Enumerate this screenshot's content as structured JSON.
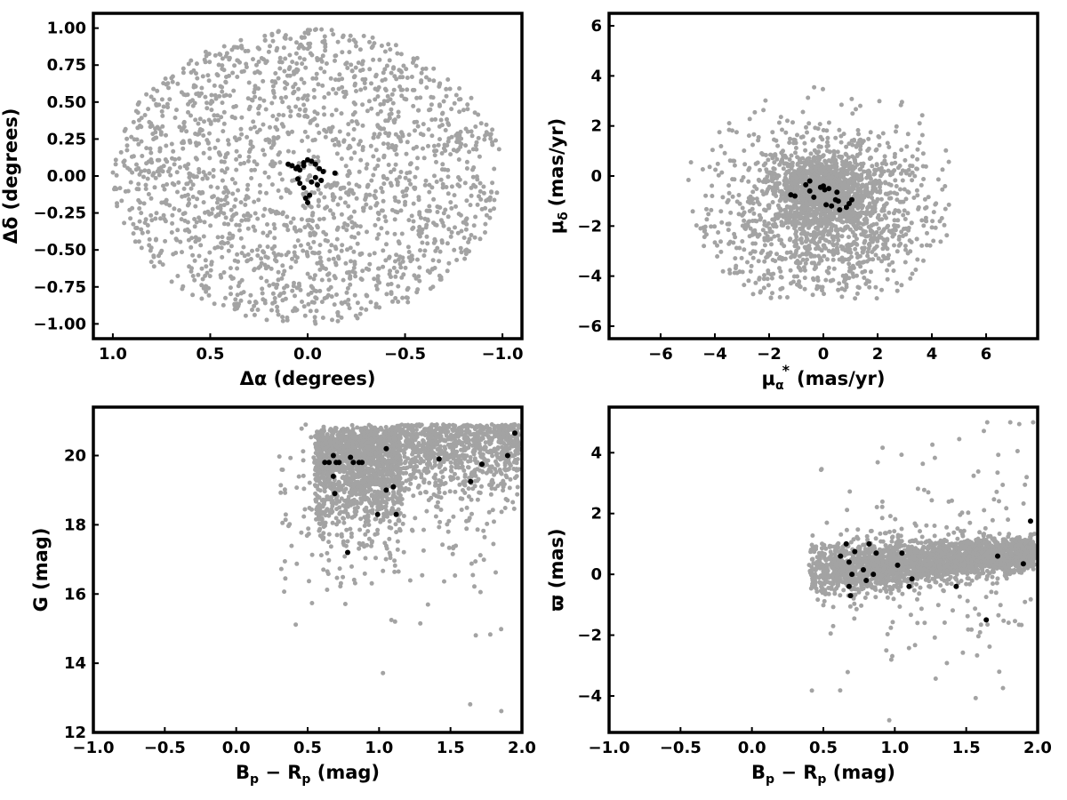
{
  "colors": {
    "field": "#a3a3a3",
    "member": "#000000"
  },
  "chart_data": [
    {
      "type": "scatter",
      "panel": "top-left",
      "xlabel": "Δα (degrees)",
      "ylabel": "Δδ (degrees)",
      "xlim": [
        1.1,
        -1.1
      ],
      "ylim": [
        -1.1,
        1.1
      ],
      "x_reversed": true,
      "xticks": [
        1.0,
        0.5,
        0.0,
        -0.5,
        -1.0
      ],
      "xtick_labels": [
        "1.0",
        "0.5",
        "0.0",
        "−0.5",
        "−1.0"
      ],
      "yticks": [
        1.0,
        0.75,
        0.5,
        0.25,
        0.0,
        -0.25,
        -0.5,
        -0.75,
        -1.0
      ],
      "ytick_labels": [
        "1.00",
        "0.75",
        "0.50",
        "0.25",
        "0.00",
        "−0.25",
        "−0.50",
        "−0.75",
        "−1.00"
      ],
      "grid": false,
      "field_stars": {
        "shape": "uniform-disk",
        "center": [
          0,
          0
        ],
        "radius": 1.0,
        "count": 1900
      },
      "members": {
        "x": [
          0.1,
          0.08,
          0.06,
          0.04,
          0.02,
          0.0,
          -0.02,
          -0.04,
          -0.06,
          -0.08,
          0.05,
          0.04,
          0.02,
          -0.02,
          -0.05,
          -0.07,
          0.01,
          -0.01,
          -0.14,
          0.02,
          0.05,
          0.0,
          -0.04
        ],
        "y": [
          0.08,
          0.07,
          0.05,
          0.04,
          0.09,
          0.11,
          0.1,
          0.08,
          0.05,
          0.03,
          -0.02,
          -0.05,
          -0.08,
          -0.04,
          -0.06,
          -0.03,
          -0.15,
          -0.13,
          0.02,
          0.07,
          0.06,
          -0.18,
          -0.01
        ]
      }
    },
    {
      "type": "scatter",
      "panel": "top-right",
      "xlabel": "μ",
      "xlabel_sub": "α",
      "xlabel_sup": "*",
      "xlabel_units": "(mas/yr)",
      "ylabel": "μ",
      "ylabel_sub": "δ",
      "ylabel_units": "(mas/yr)",
      "xlim": [
        -7.9,
        7.9
      ],
      "ylim": [
        -6.5,
        6.5
      ],
      "xticks": [
        -6,
        -4,
        -2,
        0,
        2,
        4,
        6
      ],
      "xtick_labels": [
        "−6",
        "−4",
        "−2",
        "0",
        "2",
        "4",
        "6"
      ],
      "yticks": [
        -6,
        -4,
        -2,
        0,
        2,
        4,
        6
      ],
      "ytick_labels": [
        "−6",
        "−4",
        "−2",
        "0",
        "2",
        "4",
        "6"
      ],
      "grid": false,
      "field_stars": {
        "shape": "clipped-gaussian",
        "center": [
          0,
          -1.4
        ],
        "sigma": [
          1.9,
          1.7
        ],
        "clip_radius": 5.0,
        "y_min": -4.9,
        "count": 2400
      },
      "members": {
        "x": [
          -1.2,
          -1.05,
          -0.65,
          -0.5,
          -0.35,
          -0.1,
          0.0,
          0.05,
          0.1,
          0.3,
          0.45,
          0.5,
          0.55,
          0.6,
          0.85,
          0.95,
          1.05,
          -0.5,
          0.2
        ],
        "y": [
          -0.75,
          -0.8,
          -0.35,
          -0.2,
          -0.85,
          -0.45,
          -0.4,
          -0.55,
          -1.15,
          -1.2,
          -0.95,
          -0.65,
          -1.0,
          -1.35,
          -1.25,
          -1.1,
          -0.95,
          -0.6,
          -0.5
        ]
      }
    },
    {
      "type": "scatter",
      "panel": "bottom-left",
      "xlabel": "B",
      "xlabel_parts": [
        "B",
        "p",
        " − R",
        "p",
        " (mag)"
      ],
      "ylabel": "G (mag)",
      "xlim": [
        -1.0,
        2.0
      ],
      "ylim": [
        12.0,
        21.4
      ],
      "y_reversed": true,
      "xticks": [
        -1.0,
        -0.5,
        0.0,
        0.5,
        1.0,
        1.5,
        2.0
      ],
      "xtick_labels": [
        "−1.0",
        "−0.5",
        "0.0",
        "0.5",
        "1.0",
        "1.5",
        "2.0"
      ],
      "yticks": [
        12,
        14,
        16,
        18,
        20
      ],
      "ytick_labels": [
        "12",
        "14",
        "16",
        "18",
        "20"
      ],
      "grid": false,
      "field_stars": {
        "shape": "color-magnitude",
        "count": 2600
      },
      "members": {
        "x": [
          0.62,
          0.65,
          0.68,
          0.7,
          0.72,
          0.68,
          0.69,
          0.8,
          0.82,
          0.86,
          0.88,
          0.78,
          0.99,
          1.05,
          1.05,
          1.1,
          1.12,
          1.42,
          1.64,
          1.72,
          1.9,
          1.95
        ],
        "y": [
          19.8,
          19.8,
          20.0,
          19.8,
          19.8,
          19.4,
          18.9,
          19.95,
          19.8,
          19.8,
          19.8,
          17.2,
          18.3,
          19.0,
          20.2,
          19.1,
          18.3,
          19.9,
          19.25,
          19.75,
          20.0,
          20.65
        ]
      }
    },
    {
      "type": "scatter",
      "panel": "bottom-right",
      "xlabel": "B",
      "xlabel_parts": [
        "B",
        "p",
        " − R",
        "p",
        " (mag)"
      ],
      "ylabel": "ϖ (mas)",
      "xlim": [
        -1.0,
        2.0
      ],
      "ylim": [
        -5.2,
        5.5
      ],
      "xticks": [
        -1.0,
        -0.5,
        0.0,
        0.5,
        1.0,
        1.5,
        2.0
      ],
      "xtick_labels": [
        "−1.0",
        "−0.5",
        "0.0",
        "0.5",
        "1.0",
        "1.5",
        "2.0"
      ],
      "yticks": [
        -4,
        -2,
        0,
        2,
        4
      ],
      "ytick_labels": [
        "−4",
        "−2",
        "0",
        "2",
        "4"
      ],
      "grid": false,
      "field_stars": {
        "shape": "parallax-band",
        "count": 2600
      },
      "members": {
        "x": [
          0.62,
          0.66,
          0.68,
          0.68,
          0.69,
          0.7,
          0.72,
          0.78,
          0.8,
          0.82,
          0.85,
          0.87,
          1.02,
          1.05,
          1.1,
          1.12,
          1.43,
          1.64,
          1.72,
          1.9,
          1.95
        ],
        "y": [
          0.6,
          1.0,
          0.4,
          -0.4,
          -0.7,
          0.0,
          0.75,
          0.15,
          -0.2,
          1.0,
          0.0,
          0.7,
          0.3,
          0.7,
          -0.4,
          -0.15,
          -0.4,
          -1.5,
          0.6,
          0.35,
          1.75
        ]
      }
    }
  ]
}
